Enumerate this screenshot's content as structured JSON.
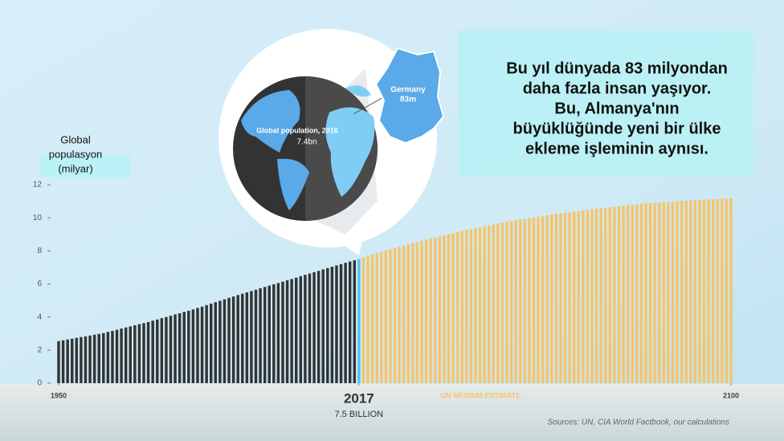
{
  "chart_data": {
    "type": "bar",
    "y_label_lines": [
      "Global",
      "populasyon",
      "(milyar)"
    ],
    "callout_lines": [
      "Bu yıl dünyada 83 milyondan",
      "daha fazla insan yaşıyor.",
      "Bu, Almanya'nın",
      "büyüklüğünde yeni bir ülke",
      "ekleme işleminin aynısı."
    ],
    "globe_label": "Global population, 2016",
    "globe_value": "7.4bn",
    "country_label": "Germany",
    "country_value": "83m",
    "highlight_label": "7.5 BILLION",
    "estimate_label": "UN MEDIUM ESTIMATE",
    "source": "Sources: UN, CIA World Factbook, our calculations",
    "xlim": [
      1950,
      2100
    ],
    "xticks": [
      1950,
      2017,
      2100
    ],
    "ylim": [
      0,
      12
    ],
    "yticks": [
      0,
      2,
      4,
      6,
      8,
      10,
      12
    ],
    "series": [
      {
        "color": "#333333",
        "x": [
          1950,
          1951,
          1952,
          1953,
          1954,
          1955,
          1956,
          1957,
          1958,
          1959,
          1960,
          1961,
          1962,
          1963,
          1964,
          1965,
          1966,
          1967,
          1968,
          1969,
          1970,
          1971,
          1972,
          1973,
          1974,
          1975,
          1976,
          1977,
          1978,
          1979,
          1980,
          1981,
          1982,
          1983,
          1984,
          1985,
          1986,
          1987,
          1988,
          1989,
          1990,
          1991,
          1992,
          1993,
          1994,
          1995,
          1996,
          1997,
          1998,
          1999,
          2000,
          2001,
          2002,
          2003,
          2004,
          2005,
          2006,
          2007,
          2008,
          2009,
          2010,
          2011,
          2012,
          2013,
          2014,
          2015,
          2016
        ],
        "values": [
          2.54,
          2.59,
          2.64,
          2.69,
          2.74,
          2.79,
          2.83,
          2.88,
          2.93,
          2.98,
          3.03,
          3.1,
          3.16,
          3.23,
          3.3,
          3.37,
          3.43,
          3.5,
          3.57,
          3.63,
          3.7,
          3.78,
          3.85,
          3.93,
          4.0,
          4.08,
          4.16,
          4.23,
          4.31,
          4.38,
          4.46,
          4.55,
          4.63,
          4.72,
          4.81,
          4.9,
          4.98,
          5.07,
          5.16,
          5.24,
          5.33,
          5.41,
          5.49,
          5.57,
          5.65,
          5.74,
          5.82,
          5.9,
          5.98,
          6.06,
          6.14,
          6.22,
          6.3,
          6.38,
          6.47,
          6.55,
          6.63,
          6.71,
          6.79,
          6.88,
          6.96,
          7.04,
          7.12,
          7.2,
          7.28,
          7.36,
          7.43
        ]
      },
      {
        "color": "#5bc0f0",
        "x": [
          2017
        ],
        "values": [
          7.5
        ]
      },
      {
        "color": "#f5c46b",
        "x": [
          2018,
          2019,
          2020,
          2021,
          2022,
          2023,
          2024,
          2025,
          2026,
          2027,
          2028,
          2029,
          2030,
          2031,
          2032,
          2033,
          2034,
          2035,
          2036,
          2037,
          2038,
          2039,
          2040,
          2041,
          2042,
          2043,
          2044,
          2045,
          2046,
          2047,
          2048,
          2049,
          2050,
          2051,
          2052,
          2053,
          2054,
          2055,
          2056,
          2057,
          2058,
          2059,
          2060,
          2061,
          2062,
          2063,
          2064,
          2065,
          2066,
          2067,
          2068,
          2069,
          2070,
          2071,
          2072,
          2073,
          2074,
          2075,
          2076,
          2077,
          2078,
          2079,
          2080,
          2081,
          2082,
          2083,
          2084,
          2085,
          2086,
          2087,
          2088,
          2089,
          2090,
          2091,
          2092,
          2093,
          2094,
          2095,
          2096,
          2097,
          2098,
          2099,
          2100
        ],
        "values": [
          7.6,
          7.69,
          7.79,
          7.87,
          7.94,
          8.02,
          8.09,
          8.17,
          8.25,
          8.32,
          8.4,
          8.47,
          8.55,
          8.62,
          8.68,
          8.75,
          8.81,
          8.88,
          8.94,
          9.01,
          9.07,
          9.14,
          9.2,
          9.26,
          9.31,
          9.37,
          9.43,
          9.49,
          9.54,
          9.6,
          9.66,
          9.71,
          9.77,
          9.81,
          9.86,
          9.9,
          9.94,
          9.99,
          10.03,
          10.07,
          10.11,
          10.16,
          10.2,
          10.24,
          10.27,
          10.31,
          10.34,
          10.38,
          10.41,
          10.45,
          10.48,
          10.52,
          10.55,
          10.58,
          10.61,
          10.64,
          10.67,
          10.7,
          10.73,
          10.76,
          10.79,
          10.82,
          10.85,
          10.87,
          10.89,
          10.91,
          10.93,
          10.95,
          10.97,
          10.99,
          11.01,
          11.03,
          11.05,
          11.06,
          11.08,
          11.09,
          11.1,
          11.12,
          11.13,
          11.14,
          11.16,
          11.17,
          11.18
        ]
      }
    ]
  }
}
